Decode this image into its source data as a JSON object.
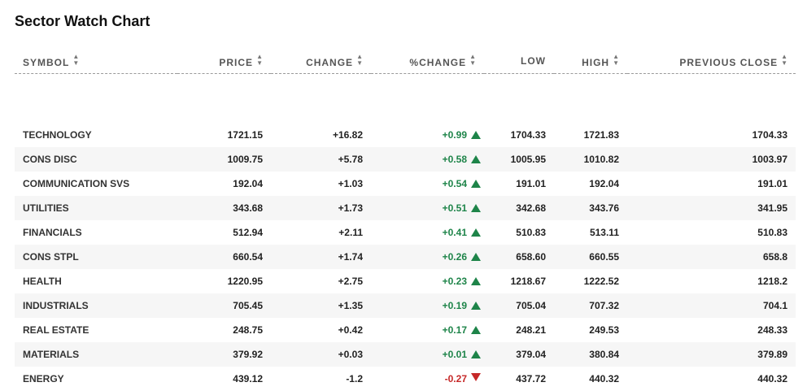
{
  "title": "Sector Watch Chart",
  "colors": {
    "positive": "#1e8449",
    "negative": "#c62828",
    "row_alt": "#f6f6f6"
  },
  "columns": [
    {
      "key": "symbol",
      "label": "SYMBOL",
      "sort_icon": "sort-arrows-icon"
    },
    {
      "key": "price",
      "label": "PRICE",
      "sort_icon": "sort-arrows-icon"
    },
    {
      "key": "change",
      "label": "CHANGE",
      "sort_icon": "sort-arrows-icon"
    },
    {
      "key": "pct_change",
      "label": "%CHANGE",
      "sort_icon": "sort-arrows-icon"
    },
    {
      "key": "low",
      "label": "LOW",
      "sort_icon": "sort-arrows-icon"
    },
    {
      "key": "high",
      "label": "HIGH",
      "sort_icon": "sort-arrows-icon"
    },
    {
      "key": "prev_close",
      "label": "PREVIOUS CLOSE",
      "sort_icon": "sort-arrows-icon"
    }
  ],
  "rows": [
    {
      "symbol": "TECHNOLOGY",
      "price": "1721.15",
      "change": "+16.82",
      "pct_change": "+0.99",
      "direction": "up",
      "low": "1704.33",
      "high": "1721.83",
      "prev_close": "1704.33"
    },
    {
      "symbol": "CONS DISC",
      "price": "1009.75",
      "change": "+5.78",
      "pct_change": "+0.58",
      "direction": "up",
      "low": "1005.95",
      "high": "1010.82",
      "prev_close": "1003.97"
    },
    {
      "symbol": "COMMUNICATION SVS",
      "price": "192.04",
      "change": "+1.03",
      "pct_change": "+0.54",
      "direction": "up",
      "low": "191.01",
      "high": "192.04",
      "prev_close": "191.01"
    },
    {
      "symbol": "UTILITIES",
      "price": "343.68",
      "change": "+1.73",
      "pct_change": "+0.51",
      "direction": "up",
      "low": "342.68",
      "high": "343.76",
      "prev_close": "341.95"
    },
    {
      "symbol": "FINANCIALS",
      "price": "512.94",
      "change": "+2.11",
      "pct_change": "+0.41",
      "direction": "up",
      "low": "510.83",
      "high": "513.11",
      "prev_close": "510.83"
    },
    {
      "symbol": "CONS STPL",
      "price": "660.54",
      "change": "+1.74",
      "pct_change": "+0.26",
      "direction": "up",
      "low": "658.60",
      "high": "660.55",
      "prev_close": "658.8"
    },
    {
      "symbol": "HEALTH",
      "price": "1220.95",
      "change": "+2.75",
      "pct_change": "+0.23",
      "direction": "up",
      "low": "1218.67",
      "high": "1222.52",
      "prev_close": "1218.2"
    },
    {
      "symbol": "INDUSTRIALS",
      "price": "705.45",
      "change": "+1.35",
      "pct_change": "+0.19",
      "direction": "up",
      "low": "705.04",
      "high": "707.32",
      "prev_close": "704.1"
    },
    {
      "symbol": "REAL ESTATE",
      "price": "248.75",
      "change": "+0.42",
      "pct_change": "+0.17",
      "direction": "up",
      "low": "248.21",
      "high": "249.53",
      "prev_close": "248.33"
    },
    {
      "symbol": "MATERIALS",
      "price": "379.92",
      "change": "+0.03",
      "pct_change": "+0.01",
      "direction": "up",
      "low": "379.04",
      "high": "380.84",
      "prev_close": "379.89"
    },
    {
      "symbol": "ENERGY",
      "price": "439.12",
      "change": "-1.2",
      "pct_change": "-0.27",
      "direction": "down",
      "low": "437.72",
      "high": "440.32",
      "prev_close": "440.32"
    }
  ]
}
